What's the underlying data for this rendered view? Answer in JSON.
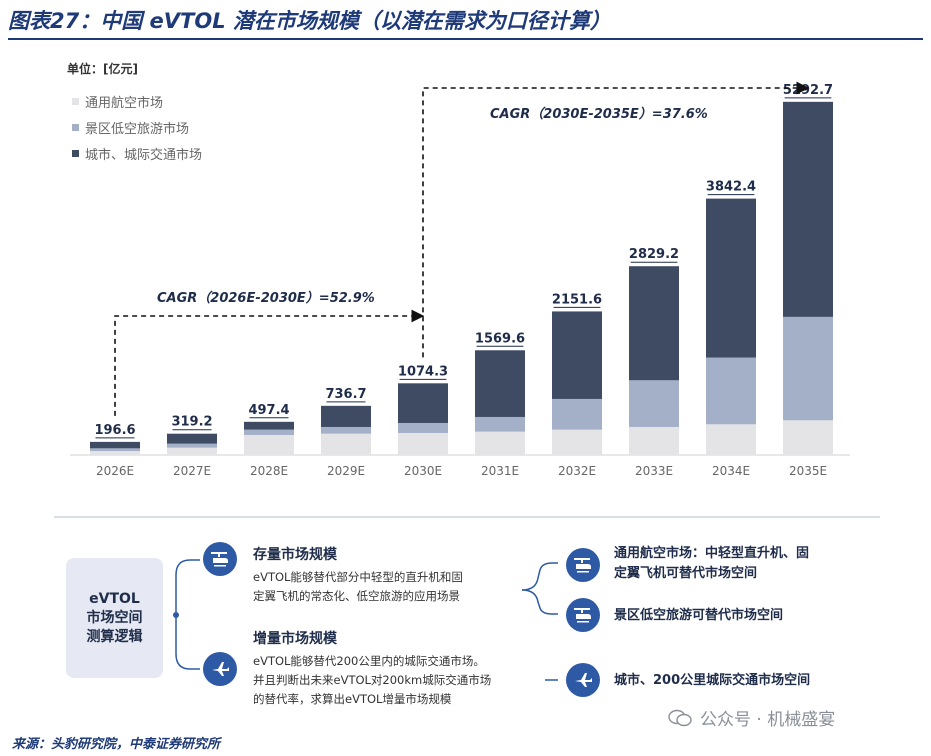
{
  "header": {
    "title": "图表27：中国 eVTOL 潜在市场规模（以潜在需求为口径计算）"
  },
  "unit_label": "单位：[亿元]",
  "chart_data": {
    "type": "bar",
    "stacked": true,
    "categories": [
      "2026E",
      "2027E",
      "2028E",
      "2029E",
      "2030E",
      "2031E",
      "2032E",
      "2033E",
      "2034E",
      "2035E"
    ],
    "totals": [
      "196.6",
      "319.2",
      "497.4",
      "736.7",
      "1074.3",
      "1569.6",
      "2151.6",
      "2829.2",
      "3842.4",
      "5292.7"
    ],
    "series": [
      {
        "name": "通用航空市场",
        "color": "#e4e4e6",
        "values": [
          60,
          110,
          300,
          320,
          330,
          350,
          380,
          420,
          460,
          520
        ]
      },
      {
        "name": "景区低空旅游市场",
        "color": "#a3b0c8",
        "values": [
          40,
          60,
          80,
          100,
          150,
          220,
          460,
          700,
          1000,
          1550
        ]
      },
      {
        "name": "城市、城际交通市场",
        "color": "#3f4a63",
        "values": [
          96.6,
          149.2,
          117.4,
          316.7,
          594.3,
          999.6,
          1311.6,
          1709.2,
          2382.4,
          3222.7
        ]
      }
    ],
    "ylim": [
      0,
      5500
    ],
    "grid": false,
    "legend_position": "top-left",
    "annotations": [
      {
        "text": "CAGR（2026E-2030E）=52.9%",
        "from": "2026E",
        "to": "2030E"
      },
      {
        "text": "CAGR（2030E-2035E）=37.6%",
        "from": "2030E",
        "to": "2035E"
      }
    ]
  },
  "logic_panel": {
    "center_label_line1": "eVTOL",
    "center_label_line2": "市场空间",
    "center_label_line3": "测算逻辑",
    "stock": {
      "title": "存量市场规模",
      "text_line1": "eVTOL能够替代部分中轻型的直升机和固",
      "text_line2": "定翼飞机的常态化、低空旅游的应用场景",
      "icon": "helicopter-icon"
    },
    "increment": {
      "title": "增量市场规模",
      "text_line1": "eVTOL能够替代200公里内的城际交通市场。",
      "text_line2": "并且判断出未来eVTOL对200km城际交通市场",
      "text_line3": "的替代率，求算出eVTOL增量市场规模",
      "icon": "airplane-icon"
    },
    "right_items": [
      {
        "line1": "通用航空市场：中轻型直升机、固",
        "line2": "定翼飞机可替代市场空间",
        "icon": "helicopter-icon"
      },
      {
        "line1": "景区低空旅游可替代市场空间",
        "line2": "",
        "icon": "helicopter-icon"
      },
      {
        "line1": "城市、200公里城际交通市场空间",
        "line2": "",
        "icon": "airplane-icon"
      }
    ],
    "colors": {
      "icon_bg": "#2e5aa5",
      "box_bg": "#e6e9f3"
    }
  },
  "footer": {
    "source": "来源：头豹研究院，中泰证券研究所",
    "watermark": "公众号 · 机械盛宴"
  }
}
